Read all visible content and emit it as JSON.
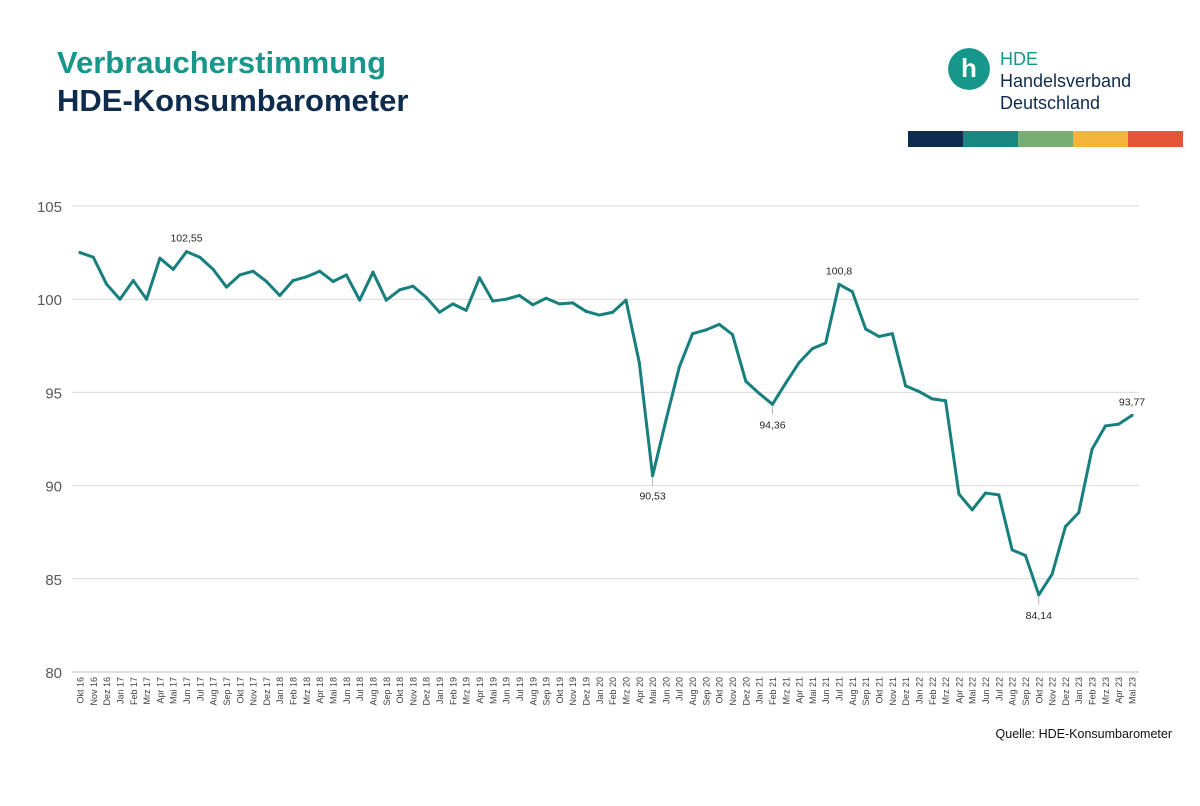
{
  "header": {
    "title_line1": "Verbraucherstimmung",
    "title_line2": "HDE-Konsumbarometer",
    "title_line1_color": "#17968c",
    "title_line2_color": "#0f2c4f"
  },
  "logo": {
    "glyph": "h",
    "line1": "HDE",
    "line2": "Handelsverband",
    "line3": "Deutschland",
    "circle_color": "#17968c",
    "line1_color": "#17968c",
    "text_color": "#0f2c4f",
    "bar_colors": [
      "#0f2c4f",
      "#17877f",
      "#78ae74",
      "#f4b33b",
      "#e55537"
    ]
  },
  "source": "Quelle: HDE-Konsumbarometer",
  "chart_data": {
    "type": "line",
    "title": "",
    "xlabel": "",
    "ylabel": "",
    "ylim": [
      80,
      105
    ],
    "yticks": [
      80,
      85,
      90,
      95,
      100,
      105
    ],
    "grid": true,
    "line_color": "#177f7d",
    "x": [
      "Okt 16",
      "Nov 16",
      "Dez 16",
      "Jan 17",
      "Feb 17",
      "Mrz 17",
      "Apr 17",
      "Mai 17",
      "Jun 17",
      "Jul 17",
      "Aug 17",
      "Sep 17",
      "Okt 17",
      "Nov 17",
      "Dez 17",
      "Jan 18",
      "Feb 18",
      "Mrz 18",
      "Apr 18",
      "Mai 18",
      "Jun 18",
      "Jul 18",
      "Aug 18",
      "Sep 18",
      "Okt 18",
      "Nov 18",
      "Dez 18",
      "Jan 19",
      "Feb 19",
      "Mrz 19",
      "Apr 19",
      "Mai 19",
      "Jun 19",
      "Jul 19",
      "Aug 19",
      "Sep 19",
      "Okt 19",
      "Nov 19",
      "Dez 19",
      "Jan 20",
      "Feb 20",
      "Mrz 20",
      "Apr 20",
      "Mai 20",
      "Jun 20",
      "Jul 20",
      "Aug 20",
      "Sep 20",
      "Okt 20",
      "Nov 20",
      "Dez 20",
      "Jan 21",
      "Feb 21",
      "Mrz 21",
      "Apr 21",
      "Mai 21",
      "Jun 21",
      "Jul 21",
      "Aug 21",
      "Sep 21",
      "Okt 21",
      "Nov 21",
      "Dez 21",
      "Jan 22",
      "Feb 22",
      "Mrz 22",
      "Apr 22",
      "Mai 22",
      "Jun 22",
      "Jul 22",
      "Aug 22",
      "Sep 22",
      "Okt 22",
      "Nov 22",
      "Dez 22",
      "Jan 23",
      "Feb 23",
      "Mrz 23",
      "Apr 23",
      "Mai 23"
    ],
    "series": [
      {
        "values": [
          102.5,
          102.25,
          100.8,
          100.0,
          101.0,
          100.0,
          102.2,
          101.6,
          102.55,
          102.25,
          101.6,
          100.65,
          101.3,
          101.5,
          100.95,
          100.2,
          101.0,
          101.2,
          101.5,
          100.95,
          101.3,
          99.95,
          101.45,
          99.95,
          100.5,
          100.7,
          100.1,
          99.3,
          99.75,
          99.4,
          101.15,
          99.9,
          100.0,
          100.2,
          99.7,
          100.05,
          99.75,
          99.8,
          99.35,
          99.15,
          99.3,
          99.95,
          96.6,
          90.53,
          93.5,
          96.35,
          98.15,
          98.35,
          98.65,
          98.1,
          95.6,
          94.95,
          94.36,
          95.5,
          96.6,
          97.35,
          97.65,
          100.8,
          100.4,
          98.4,
          98.0,
          98.15,
          95.35,
          95.05,
          94.65,
          94.55,
          89.55,
          88.7,
          89.6,
          89.5,
          86.55,
          86.25,
          84.14,
          85.25,
          87.8,
          88.55,
          91.95,
          93.2,
          93.3,
          93.77
        ]
      }
    ],
    "annotations": [
      {
        "index": 8,
        "label": "102,55",
        "position": "above"
      },
      {
        "index": 43,
        "label": "90,53",
        "position": "below"
      },
      {
        "index": 52,
        "label": "94,36",
        "position": "below"
      },
      {
        "index": 57,
        "label": "100,8",
        "position": "above"
      },
      {
        "index": 72,
        "label": "84,14",
        "position": "below"
      },
      {
        "index": 79,
        "label": "93,77",
        "position": "above"
      }
    ]
  }
}
